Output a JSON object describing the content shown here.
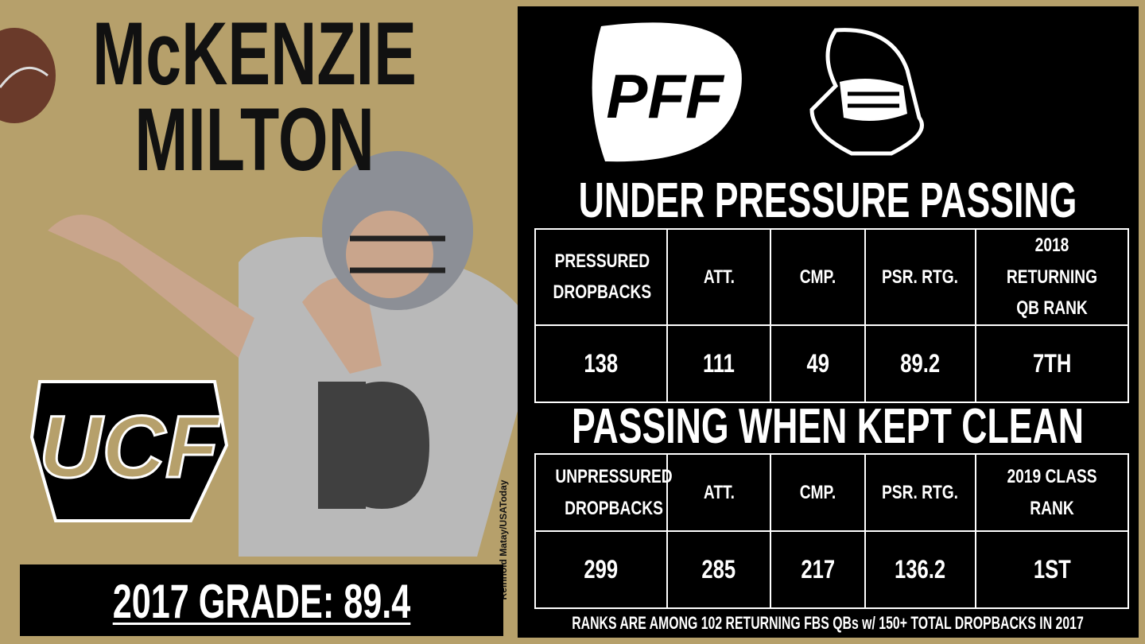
{
  "header": {
    "first_name": "McKENZIE",
    "last_name": "MILTON"
  },
  "logos": {
    "pff": "PFF",
    "team": "UCF"
  },
  "photo_credit": "Reinhold Matay/USAToday",
  "grade": "2017 GRADE: 89.4",
  "sections": [
    {
      "title": "UNDER PRESSURE PASSING",
      "columns": [
        "PRESSURED DROPBACKS",
        "ATT.",
        "CMP.",
        "PSR. RTG.",
        "2018 RETURNING QB RANK"
      ],
      "values": [
        138,
        111,
        49,
        89.2,
        "7TH"
      ]
    },
    {
      "title": "PASSING WHEN KEPT CLEAN",
      "columns": [
        "UNPRESSURED DROPBACKS",
        "ATT.",
        "CMP.",
        "PSR. RTG.",
        "2019 CLASS RANK"
      ],
      "values": [
        299,
        285,
        217,
        136.2,
        "1ST"
      ]
    }
  ],
  "footnote": "RANKS ARE AMONG 102 RETURNING FBS QBs w/ 150+ TOTAL DROPBACKS IN 2017"
}
